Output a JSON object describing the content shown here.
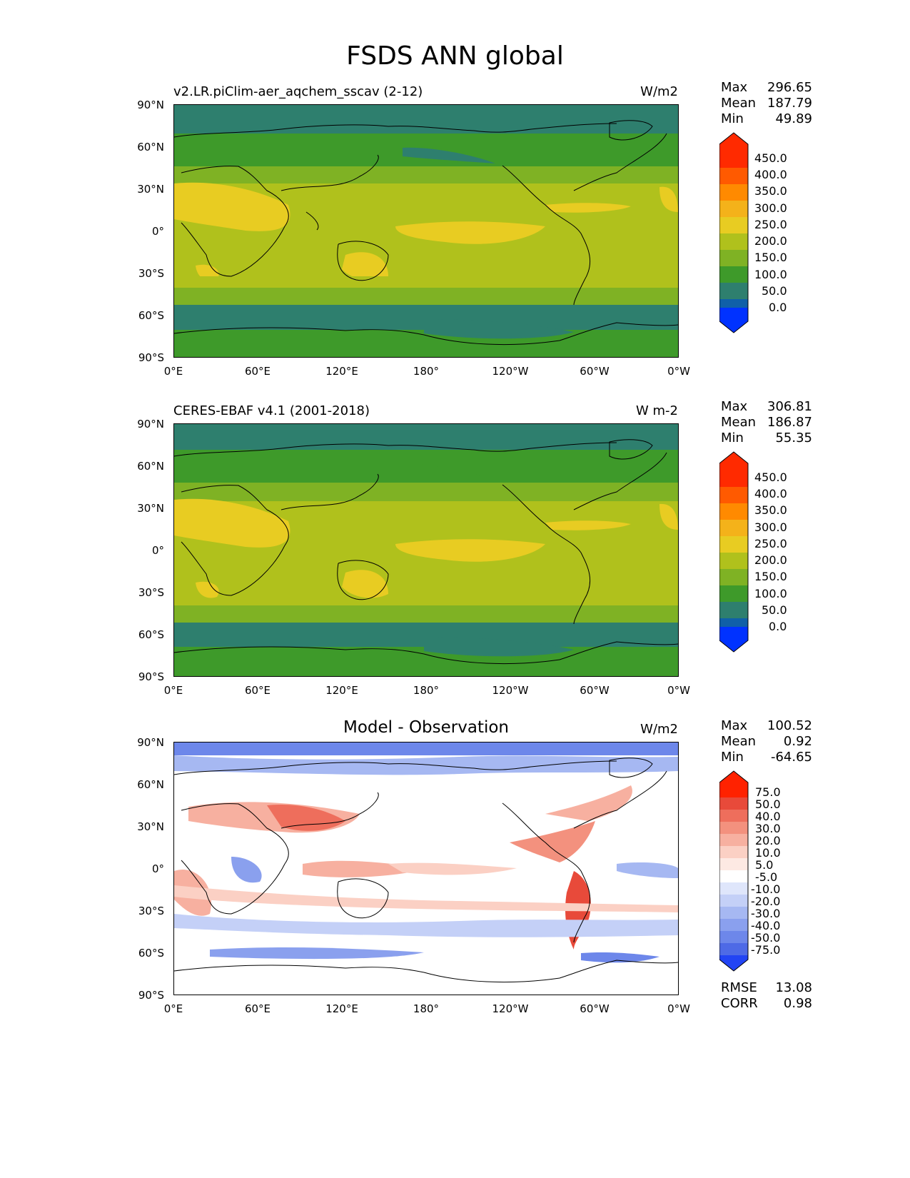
{
  "figure_title": "FSDS ANN global",
  "x_ticks": [
    "0°E",
    "60°E",
    "120°E",
    "180°",
    "120°W",
    "60°W",
    "0°W"
  ],
  "y_ticks": [
    "90°N",
    "60°N",
    "30°N",
    "0°",
    "30°S",
    "60°S",
    "90°S"
  ],
  "panels": [
    {
      "title_left": "v2.LR.piClim-aer_aqchem_sscav (2-12)",
      "title_center": "",
      "units": "W/m2",
      "stats": {
        "max_label": "Max",
        "max": "296.65",
        "mean_label": "Mean",
        "mean": "187.79",
        "min_label": "Min",
        "min": "49.89"
      },
      "colorbar_labels": [
        "450.0",
        "400.0",
        "350.0",
        "300.0",
        "250.0",
        "200.0",
        "150.0",
        "100.0",
        "50.0",
        "0.0"
      ]
    },
    {
      "title_left": "CERES-EBAF v4.1 (2001-2018)",
      "title_center": "",
      "units": "W m-2",
      "stats": {
        "max_label": "Max",
        "max": "306.81",
        "mean_label": "Mean",
        "mean": "186.87",
        "min_label": "Min",
        "min": "55.35"
      },
      "colorbar_labels": [
        "450.0",
        "400.0",
        "350.0",
        "300.0",
        "250.0",
        "200.0",
        "150.0",
        "100.0",
        "50.0",
        "0.0"
      ]
    },
    {
      "title_left": "",
      "title_center": "Model - Observation",
      "units": "W/m2",
      "stats": {
        "max_label": "Max",
        "max": "100.52",
        "mean_label": "Mean",
        "mean": "0.92",
        "min_label": "Min",
        "min": "-64.65"
      },
      "colorbar_labels": [
        "75.0",
        "50.0",
        "40.0",
        "30.0",
        "20.0",
        "10.0",
        "5.0",
        "-5.0",
        "-10.0",
        "-20.0",
        "-30.0",
        "-40.0",
        "-50.0",
        "-75.0"
      ],
      "rmse_label": "RMSE",
      "rmse": "13.08",
      "corr_label": "CORR",
      "corr": "0.98"
    }
  ],
  "colors": {
    "abs_levels": [
      "#ff2a00",
      "#ff5a00",
      "#ff8a00",
      "#f4b21a",
      "#e8cc22",
      "#b0c11c",
      "#7fb224",
      "#3e9a2a",
      "#2e7f6e",
      "#1060a8",
      "#0032ff"
    ],
    "diff_levels": [
      "#ff2200",
      "#e84a3a",
      "#ee6e5c",
      "#f3917e",
      "#f7b0a0",
      "#fbd0c4",
      "#fde9e3",
      "#ffffff",
      "#dfe6fb",
      "#c4d0f7",
      "#a6b8f2",
      "#8aa0ee",
      "#6d87ea",
      "#4e6ae6",
      "#2244f4"
    ]
  }
}
